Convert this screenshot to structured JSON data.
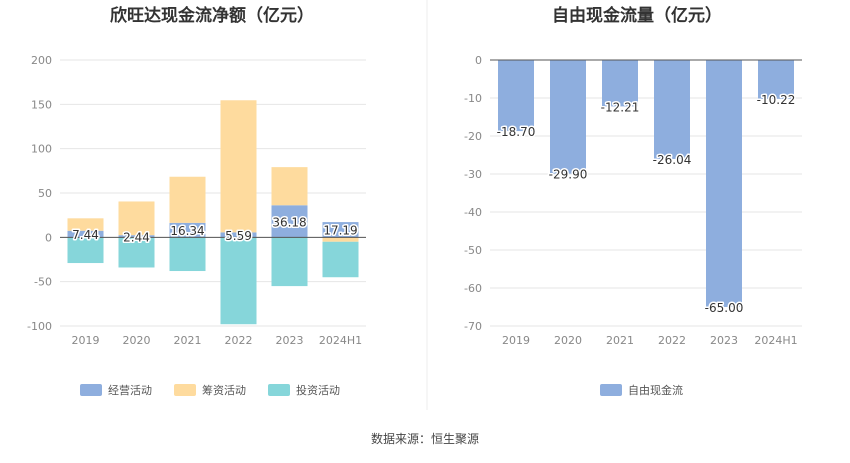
{
  "source": "数据来源：恒生聚源",
  "colors": {
    "operating": "#8eaede",
    "financing": "#fedb9e",
    "investing": "#86d6da",
    "free_cash_flow": "#8eaede",
    "axis_text": "#888888",
    "grid": "#e6e6e6",
    "title": "#333333"
  },
  "chart_data": [
    {
      "type": "bar",
      "stacked": true,
      "title": "欣旺达现金流净额（亿元）",
      "categories": [
        "2019",
        "2020",
        "2021",
        "2022",
        "2023",
        "2024H1"
      ],
      "ylim": [
        -100,
        200
      ],
      "yticks": [
        -100,
        -50,
        0,
        50,
        100,
        150,
        200
      ],
      "grid": true,
      "legend": "bottom",
      "series": [
        {
          "name": "经营活动",
          "key": "operating",
          "values": [
            7.44,
            2.44,
            16.34,
            5.59,
            36.18,
            17.19
          ]
        },
        {
          "name": "筹资活动",
          "key": "financing",
          "values": [
            14,
            38,
            52,
            149,
            43,
            -5
          ]
        },
        {
          "name": "投资活动",
          "key": "investing",
          "values": [
            -29,
            -34,
            -38,
            -98,
            -55,
            -40
          ]
        }
      ],
      "data_labels": [
        "7.44",
        "2.44",
        "16.34",
        "5.59",
        "36.18",
        "17.19"
      ]
    },
    {
      "type": "bar",
      "title": "自由现金流量（亿元）",
      "categories": [
        "2019",
        "2020",
        "2021",
        "2022",
        "2023",
        "2024H1"
      ],
      "ylim": [
        -70,
        0
      ],
      "yticks": [
        -70,
        -60,
        -50,
        -40,
        -30,
        -20,
        -10,
        0
      ],
      "grid": true,
      "legend": "bottom",
      "series": [
        {
          "name": "自由现金流",
          "key": "free_cash_flow",
          "values": [
            -18.7,
            -29.9,
            -12.21,
            -26.04,
            -65.0,
            -10.22
          ]
        }
      ],
      "data_labels": [
        "-18.70",
        "-29.90",
        "-12.21",
        "-26.04",
        "-65.00",
        "-10.22"
      ]
    }
  ]
}
